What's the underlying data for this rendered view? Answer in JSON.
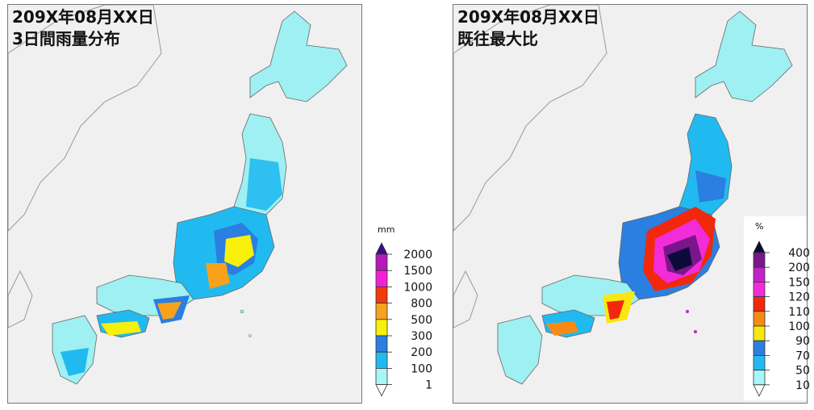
{
  "left_panel": {
    "title_line1": "209X年08月XX日",
    "title_line2": "3日間雨量分布",
    "legend": {
      "unit": "mm",
      "levels": [
        "2000",
        "1500",
        "1000",
        "800",
        "500",
        "300",
        "200",
        "100",
        "1"
      ],
      "colors": [
        "#3a0d86",
        "#b51ab8",
        "#f221d5",
        "#f23a0c",
        "#f7a21a",
        "#f8f00b",
        "#2a7fe0",
        "#21baf0",
        "#a6f6f8",
        "#ffffff"
      ]
    }
  },
  "right_panel": {
    "title_line1": "209X年08月XX日",
    "title_line2": "既往最大比",
    "legend": {
      "unit": "%",
      "levels": [
        "400",
        "200",
        "150",
        "120",
        "110",
        "100",
        "90",
        "70",
        "50",
        "10"
      ],
      "colors": [
        "#0b0b3a",
        "#7b168a",
        "#c223c8",
        "#f22cd8",
        "#f2280c",
        "#f78a17",
        "#f8e80e",
        "#2a7fe0",
        "#21baf0",
        "#a6f6f8",
        "#ffffff"
      ]
    }
  },
  "colors": {
    "land_base": "#9ef0f2",
    "sea": "#f0f0f0",
    "border": "#888888"
  }
}
